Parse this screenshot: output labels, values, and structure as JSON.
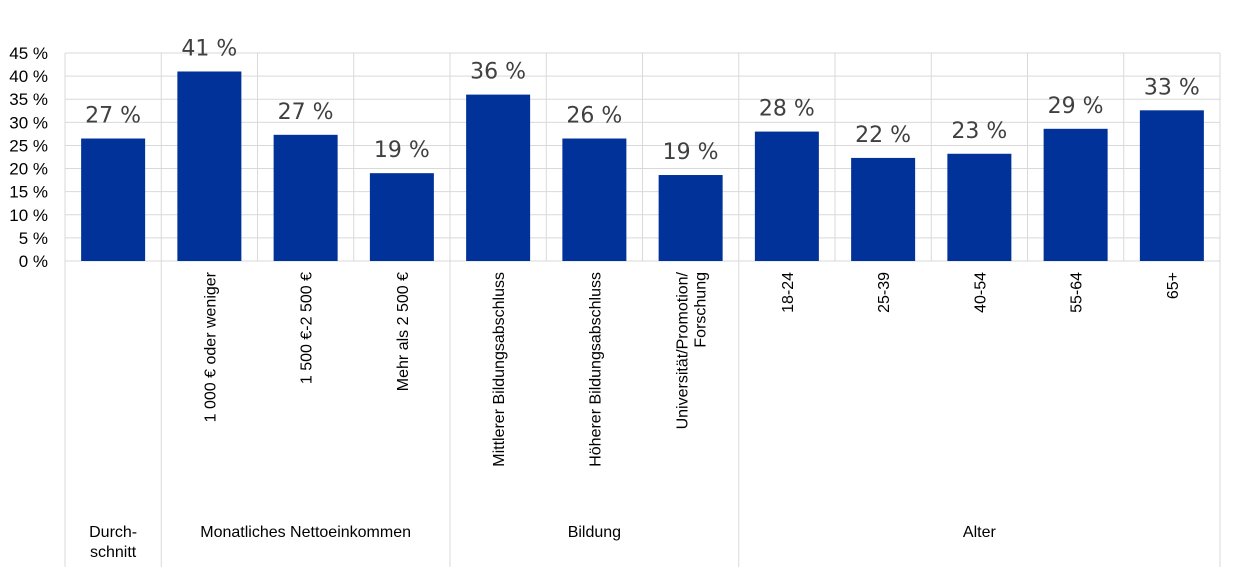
{
  "chart_data": {
    "type": "bar",
    "title": "",
    "xlabel": "",
    "ylabel": "",
    "ylim": [
      0,
      45
    ],
    "yticks": [
      "0 %",
      "5 %",
      "10 %",
      "15 %",
      "20 %",
      "25 %",
      "30 %",
      "35 %",
      "40 %",
      "45 %"
    ],
    "grid": true,
    "color": "#003299",
    "categories": [
      "",
      "1 000 € oder weniger",
      "1 500 €-2 500 €",
      "Mehr als 2 500 €",
      "Mittlerer Bildungsabschluss",
      "Höherer Bildungsabschluss",
      [
        "Universität/Promotion/",
        "Forschung"
      ],
      "18-24",
      "25-39",
      "40-54",
      "55-64",
      "65+"
    ],
    "values": [
      26.5,
      41,
      27.3,
      19,
      36,
      26.5,
      18.6,
      28,
      22.3,
      23.2,
      28.6,
      32.6
    ],
    "data_labels": [
      "27 %",
      "41 %",
      "27 %",
      "19 %",
      "36 %",
      "26 %",
      "19 %",
      "28 %",
      "22 %",
      "23 %",
      "29 %",
      "33 %"
    ],
    "groups": [
      {
        "label": [
          "Durch-",
          "schnitt"
        ],
        "span": 1
      },
      {
        "label": [
          "Monatliches Nettoeinkommen"
        ],
        "span": 3
      },
      {
        "label": [
          "Bildung"
        ],
        "span": 3
      },
      {
        "label": [
          "Alter"
        ],
        "span": 5
      }
    ]
  }
}
